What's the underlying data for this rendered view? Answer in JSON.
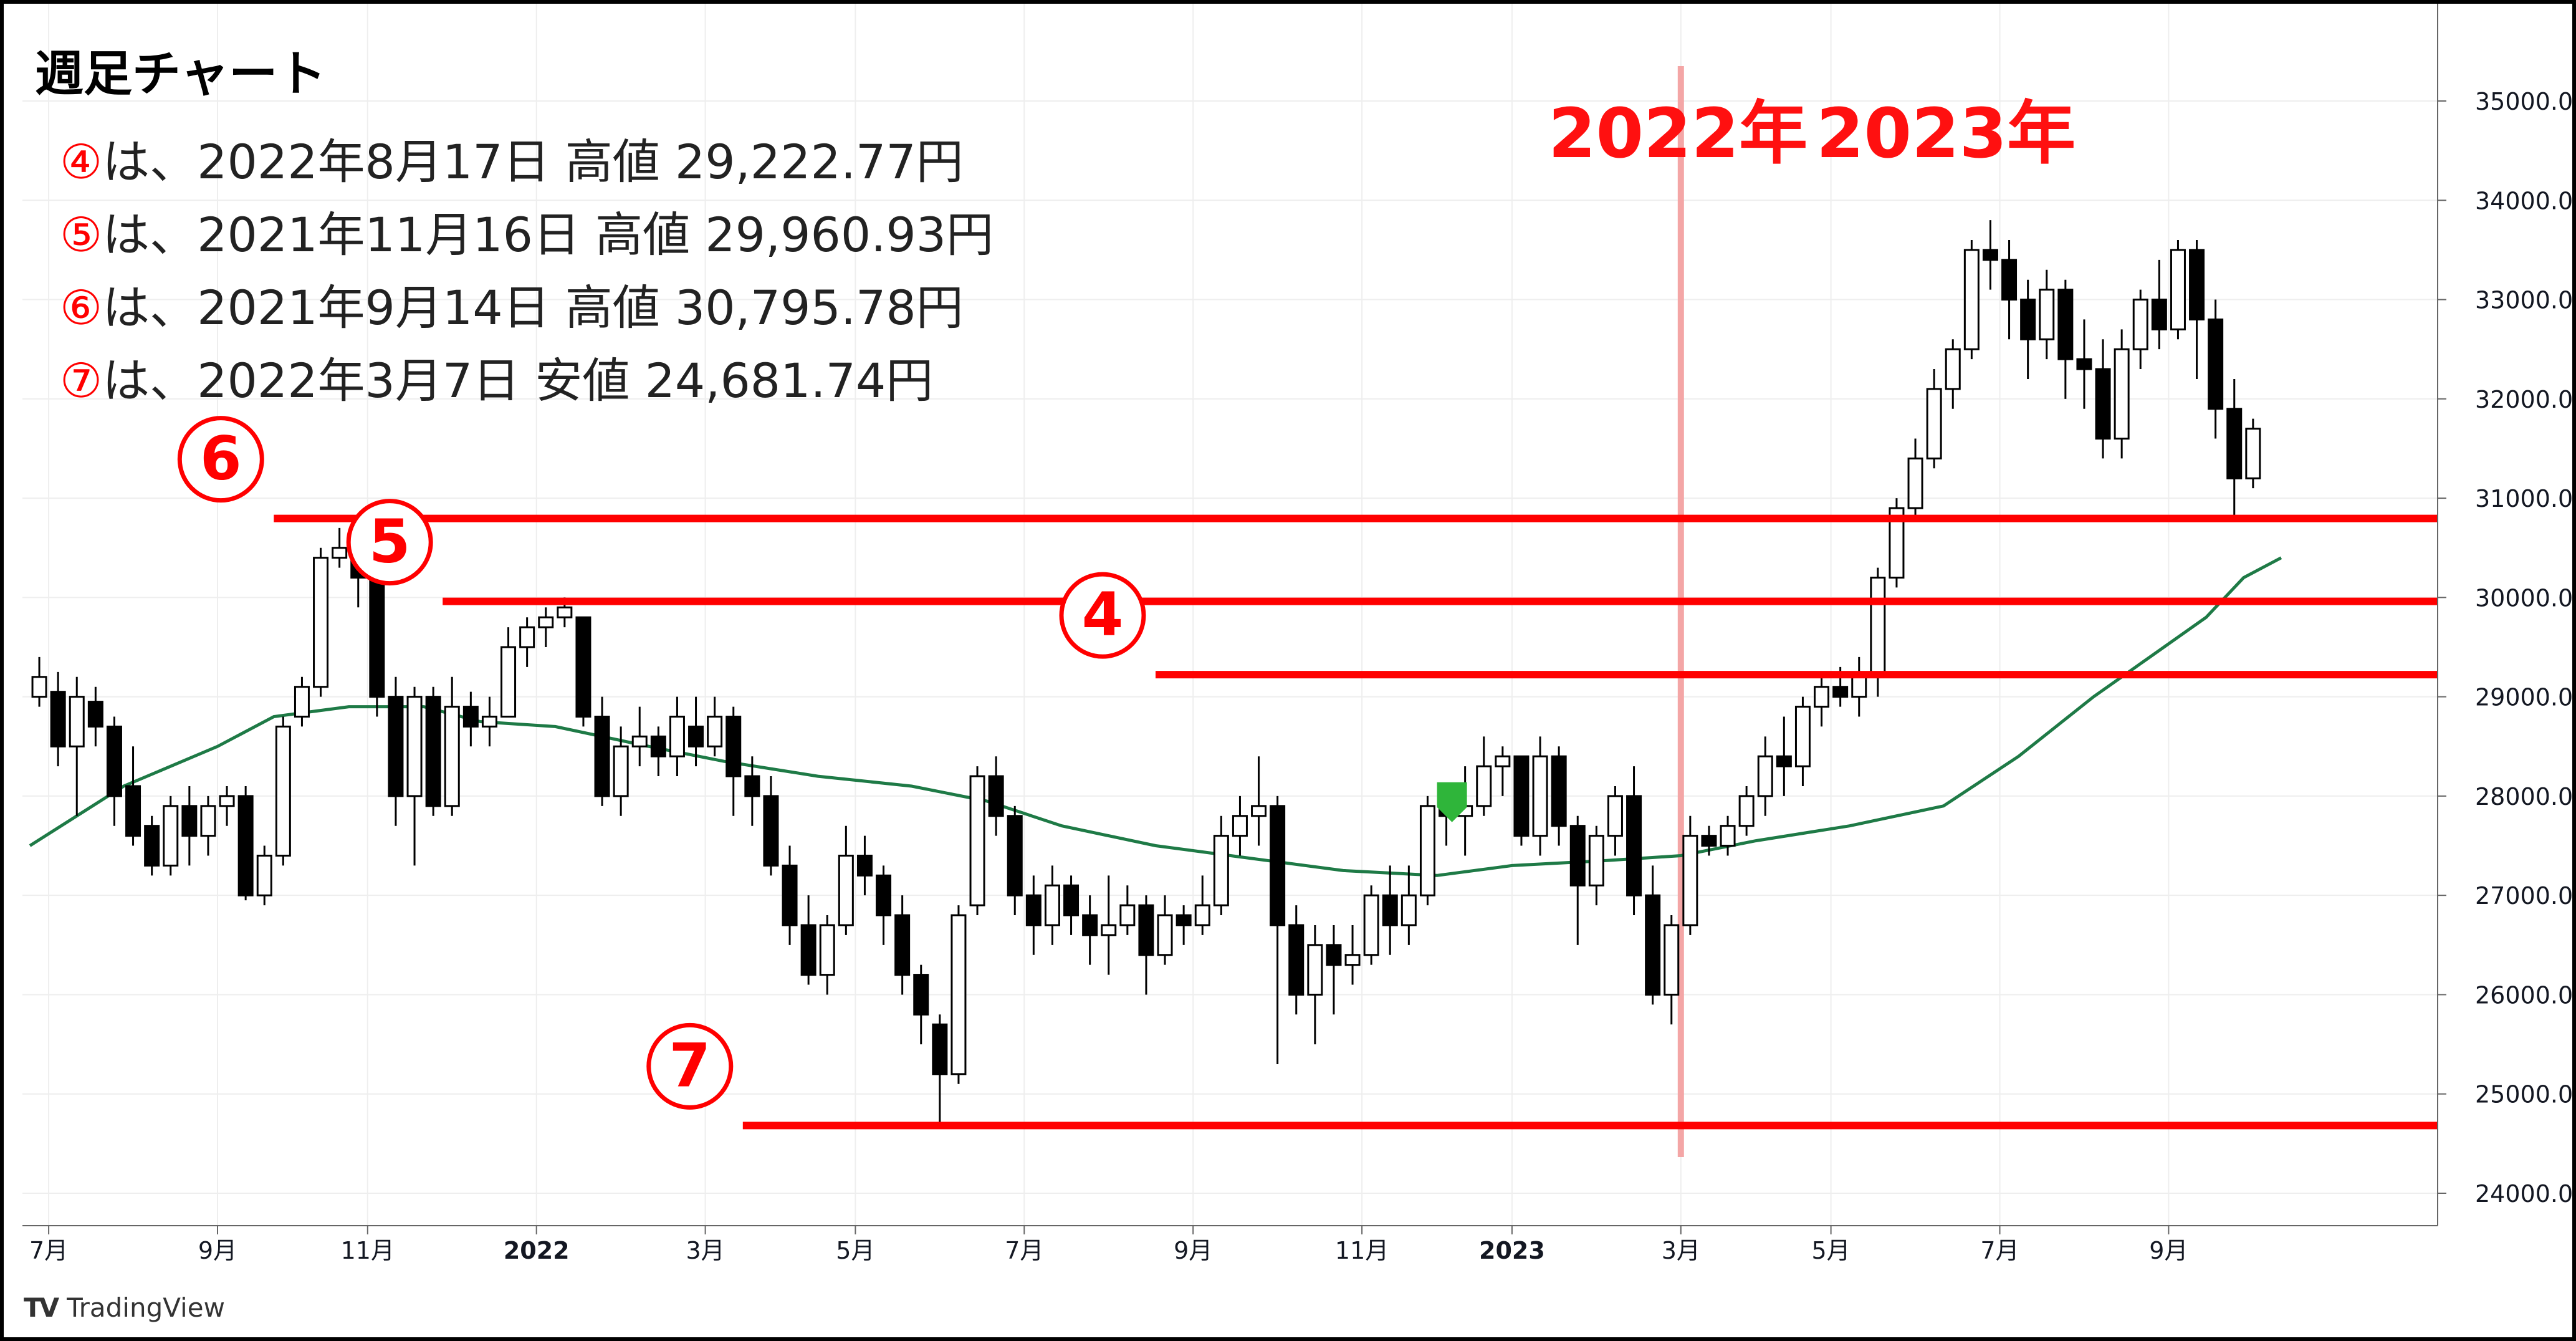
{
  "title": "週足チャート",
  "notes": [
    {
      "mark": "④",
      "text": "は、2022年8月17日 高値 29,222.77円"
    },
    {
      "mark": "⑤",
      "text": "は、2021年11月16日 高値 29,960.93円"
    },
    {
      "mark": "⑥",
      "text": "は、2021年9月14日 高値 30,795.78円"
    },
    {
      "mark": "⑦",
      "text": "は、2022年3月7日 安値 24,681.74円"
    }
  ],
  "year_labels": {
    "left": "2022年",
    "right": "2023年"
  },
  "brand": "TradingView",
  "colors": {
    "up": "#ffffff",
    "down": "#000000",
    "level_line": "#ff0000",
    "ma": "#1e7a46",
    "ma_bright": "#36c72e",
    "year_divider": "#f4a6a6",
    "marker": "#2fb53a"
  },
  "chart_data": {
    "type": "candlestick",
    "title": "週足チャート",
    "y_ticks": [
      "24000.00",
      "25000.00",
      "26000.00",
      "27000.00",
      "28000.00",
      "29000.00",
      "30000.00",
      "31000.00",
      "32000.00",
      "33000.00",
      "34000.00",
      "35000.00"
    ],
    "ylim": [
      23900,
      35400
    ],
    "x_ticks": [
      {
        "label": "7月",
        "week": 1
      },
      {
        "label": "9月",
        "week": 10
      },
      {
        "label": "11月",
        "week": 18
      },
      {
        "label": "2022",
        "week": 27
      },
      {
        "label": "3月",
        "week": 36
      },
      {
        "label": "5月",
        "week": 44
      },
      {
        "label": "7月",
        "week": 53
      },
      {
        "label": "9月",
        "week": 62
      },
      {
        "label": "11月",
        "week": 71
      },
      {
        "label": "2023",
        "week": 79
      },
      {
        "label": "3月",
        "week": 88
      },
      {
        "label": "5月",
        "week": 96
      },
      {
        "label": "7月",
        "week": 105
      },
      {
        "label": "9月",
        "week": 114
      }
    ],
    "year_divider_week": 88,
    "levels": [
      {
        "mark": "⑥",
        "value": 30795.78,
        "start_week": 13
      },
      {
        "mark": "⑤",
        "value": 29960.93,
        "start_week": 22
      },
      {
        "mark": "④",
        "value": 29222.77,
        "start_week": 60
      },
      {
        "mark": "⑦",
        "value": 24681.74,
        "start_week": 38
      }
    ],
    "candles": [
      [
        29000,
        29200,
        29400,
        28900
      ],
      [
        29050,
        28500,
        29250,
        28300
      ],
      [
        28500,
        29000,
        29200,
        27800
      ],
      [
        28950,
        28700,
        29100,
        28500
      ],
      [
        28700,
        28000,
        28800,
        27700
      ],
      [
        28100,
        27600,
        28500,
        27500
      ],
      [
        27700,
        27300,
        27800,
        27200
      ],
      [
        27300,
        27900,
        28000,
        27200
      ],
      [
        27900,
        27600,
        28100,
        27300
      ],
      [
        27600,
        27900,
        28000,
        27400
      ],
      [
        27900,
        28000,
        28100,
        27700
      ],
      [
        28000,
        27000,
        28100,
        26950
      ],
      [
        27000,
        27400,
        27500,
        26900
      ],
      [
        27400,
        28700,
        28800,
        27300
      ],
      [
        28800,
        29100,
        29200,
        28700
      ],
      [
        29100,
        30400,
        30500,
        29000
      ],
      [
        30400,
        30500,
        30700,
        30300
      ],
      [
        30500,
        30200,
        30600,
        29900
      ],
      [
        30200,
        29000,
        30300,
        28800
      ],
      [
        29000,
        28000,
        29200,
        27700
      ],
      [
        28000,
        29000,
        29100,
        27300
      ],
      [
        29000,
        27900,
        29100,
        27800
      ],
      [
        27900,
        28900,
        29200,
        27800
      ],
      [
        28900,
        28700,
        29050,
        28500
      ],
      [
        28700,
        28800,
        29000,
        28500
      ],
      [
        28800,
        29500,
        29700,
        29400
      ],
      [
        29500,
        29700,
        29800,
        29300
      ],
      [
        29700,
        29800,
        29900,
        29500
      ],
      [
        29800,
        29900,
        30000,
        29700
      ],
      [
        29800,
        28800,
        29800,
        28700
      ],
      [
        28800,
        28000,
        29000,
        27900
      ],
      [
        28000,
        28500,
        28700,
        27800
      ],
      [
        28500,
        28600,
        28900,
        28300
      ],
      [
        28600,
        28400,
        28700,
        28200
      ],
      [
        28400,
        28800,
        29000,
        28200
      ],
      [
        28700,
        28500,
        29000,
        28300
      ],
      [
        28500,
        28800,
        29000,
        28400
      ],
      [
        28800,
        28200,
        28900,
        27800
      ],
      [
        28200,
        28000,
        28400,
        27700
      ],
      [
        28000,
        27300,
        28200,
        27200
      ],
      [
        27300,
        26700,
        27500,
        26500
      ],
      [
        26700,
        26200,
        27000,
        26100
      ],
      [
        26200,
        26700,
        26800,
        26000
      ],
      [
        26700,
        27400,
        27700,
        26600
      ],
      [
        27400,
        27200,
        27600,
        27000
      ],
      [
        27200,
        26800,
        27300,
        26500
      ],
      [
        26800,
        26200,
        27000,
        26000
      ],
      [
        26200,
        25800,
        26300,
        25500
      ],
      [
        25700,
        25200,
        25800,
        24700
      ],
      [
        25200,
        26800,
        26900,
        25100
      ],
      [
        26900,
        28200,
        28300,
        26800
      ],
      [
        28200,
        27800,
        28400,
        27600
      ],
      [
        27800,
        27000,
        27900,
        26800
      ],
      [
        27000,
        26700,
        27200,
        26400
      ],
      [
        26700,
        27100,
        27300,
        26500
      ],
      [
        27100,
        26800,
        27200,
        26600
      ],
      [
        26800,
        26600,
        27000,
        26300
      ],
      [
        26600,
        26700,
        27200,
        26200
      ],
      [
        26700,
        26900,
        27100,
        26600
      ],
      [
        26900,
        26400,
        27000,
        26000
      ],
      [
        26400,
        26800,
        27000,
        26300
      ],
      [
        26800,
        26700,
        26900,
        26500
      ],
      [
        26700,
        26900,
        27200,
        26600
      ],
      [
        26900,
        27600,
        27800,
        26800
      ],
      [
        27600,
        27800,
        28000,
        27400
      ],
      [
        27800,
        27900,
        28400,
        27500
      ],
      [
        27900,
        26700,
        28000,
        25300
      ],
      [
        26700,
        26000,
        26900,
        25800
      ],
      [
        26000,
        26500,
        26700,
        25500
      ],
      [
        26500,
        26300,
        26700,
        25800
      ],
      [
        26300,
        26400,
        26700,
        26100
      ],
      [
        26400,
        27000,
        27100,
        26300
      ],
      [
        27000,
        26700,
        27300,
        26400
      ],
      [
        26700,
        27000,
        27300,
        26500
      ],
      [
        27000,
        27900,
        28000,
        26900
      ],
      [
        27900,
        27800,
        28100,
        27500
      ],
      [
        27800,
        27900,
        28300,
        27400
      ],
      [
        27900,
        28300,
        28600,
        27800
      ],
      [
        28300,
        28400,
        28500,
        28000
      ],
      [
        28400,
        27600,
        28400,
        27500
      ],
      [
        27600,
        28400,
        28600,
        27400
      ],
      [
        28400,
        27700,
        28500,
        27500
      ],
      [
        27700,
        27100,
        27800,
        26500
      ],
      [
        27100,
        27600,
        27700,
        26900
      ],
      [
        27600,
        28000,
        28100,
        27400
      ],
      [
        28000,
        27000,
        28300,
        26800
      ],
      [
        27000,
        26000,
        27300,
        25900
      ],
      [
        26000,
        26700,
        26800,
        25700
      ],
      [
        26700,
        27600,
        27800,
        26600
      ],
      [
        27600,
        27500,
        27700,
        27400
      ],
      [
        27500,
        27700,
        27800,
        27400
      ],
      [
        27700,
        28000,
        28100,
        27600
      ],
      [
        28000,
        28400,
        28600,
        27800
      ],
      [
        28400,
        28300,
        28800,
        28000
      ],
      [
        28300,
        28900,
        29000,
        28100
      ],
      [
        28900,
        29100,
        29200,
        28700
      ],
      [
        29100,
        29000,
        29300,
        28900
      ],
      [
        29000,
        29200,
        29400,
        28800
      ],
      [
        29200,
        30200,
        30300,
        29000
      ],
      [
        30200,
        30900,
        31000,
        30100
      ],
      [
        30900,
        31400,
        31600,
        30800
      ],
      [
        31400,
        32100,
        32300,
        31300
      ],
      [
        32100,
        32500,
        32600,
        31900
      ],
      [
        32500,
        33500,
        33600,
        32400
      ],
      [
        33500,
        33400,
        33800,
        33100
      ],
      [
        33400,
        33000,
        33600,
        32600
      ],
      [
        33000,
        32600,
        33200,
        32200
      ],
      [
        32600,
        33100,
        33300,
        32400
      ],
      [
        33100,
        32400,
        33200,
        32000
      ],
      [
        32400,
        32300,
        32800,
        31900
      ],
      [
        32300,
        31600,
        32600,
        31400
      ],
      [
        31600,
        32500,
        32700,
        31400
      ],
      [
        32500,
        33000,
        33100,
        32300
      ],
      [
        33000,
        32700,
        33400,
        32500
      ],
      [
        32700,
        33500,
        33600,
        32600
      ],
      [
        33500,
        32800,
        33600,
        32200
      ],
      [
        32800,
        31900,
        33000,
        31600
      ],
      [
        31900,
        31200,
        32200,
        30800
      ],
      [
        31200,
        31700,
        31800,
        31100
      ]
    ],
    "ma_green": [
      [
        0,
        27500
      ],
      [
        5,
        28100
      ],
      [
        10,
        28500
      ],
      [
        13,
        28800
      ],
      [
        17,
        28900
      ],
      [
        21,
        28900
      ],
      [
        24,
        28750
      ],
      [
        28,
        28700
      ],
      [
        33,
        28500
      ],
      [
        37,
        28350
      ],
      [
        42,
        28200
      ],
      [
        47,
        28100
      ],
      [
        51,
        27950
      ],
      [
        55,
        27700
      ],
      [
        60,
        27500
      ],
      [
        64,
        27400
      ],
      [
        70,
        27250
      ],
      [
        75,
        27200
      ],
      [
        79,
        27300
      ],
      [
        84,
        27350
      ],
      [
        88,
        27400
      ],
      [
        92,
        27550
      ],
      [
        97,
        27700
      ],
      [
        102,
        27900
      ],
      [
        106,
        28400
      ],
      [
        110,
        29000
      ],
      [
        113,
        29400
      ],
      [
        116,
        29800
      ],
      [
        118,
        30200
      ],
      [
        120,
        30400
      ]
    ]
  }
}
